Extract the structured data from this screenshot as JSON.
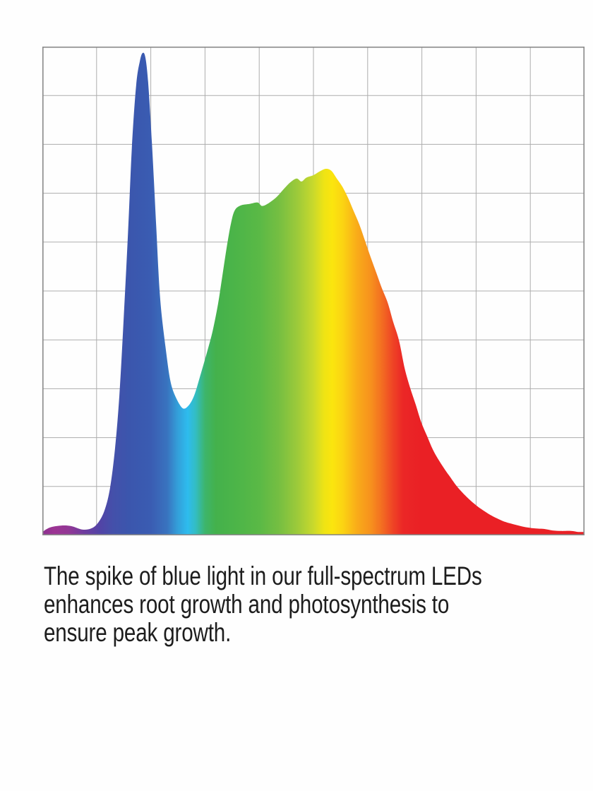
{
  "page": {
    "background": "#FEFEFE"
  },
  "chart_data": {
    "type": "area",
    "title": "",
    "subtitle": "",
    "xlabel": "",
    "ylabel": "",
    "tick_labels": "none",
    "legend": "none",
    "description": "Full-spectrum LED spectral power distribution: sharp blue spike near left, broad green-yellow-red hump, rainbow gradient fill, unlabeled 10x10 grid",
    "grid": {
      "visible": true,
      "columns": 10,
      "rows": 10,
      "line_color": "#ADADAD",
      "border_color": "#8A8A8A"
    },
    "x_unit": "percent_of_chart_width",
    "y_unit": "percent_relative_intensity",
    "xlim": [
      0,
      100
    ],
    "ylim": [
      0,
      100
    ],
    "series": [
      {
        "name": "full-spectrum-led-output",
        "points": [
          [
            0,
            0.7
          ],
          [
            1.4,
            1.6
          ],
          [
            3.4,
            2.0
          ],
          [
            5.3,
            1.9
          ],
          [
            7.3,
            1.2
          ],
          [
            9.0,
            1.4
          ],
          [
            10.3,
            2.6
          ],
          [
            11.5,
            5.2
          ],
          [
            12.5,
            9.8
          ],
          [
            13.4,
            17.7
          ],
          [
            14.2,
            28.6
          ],
          [
            15.0,
            44.4
          ],
          [
            15.8,
            61.8
          ],
          [
            16.5,
            79.1
          ],
          [
            17.3,
            92.1
          ],
          [
            18.0,
            97.1
          ],
          [
            18.5,
            98.7
          ],
          [
            19.0,
            97.8
          ],
          [
            19.5,
            92.8
          ],
          [
            20.2,
            80.5
          ],
          [
            21.0,
            63.2
          ],
          [
            21.7,
            48.8
          ],
          [
            22.7,
            38.7
          ],
          [
            23.6,
            31.7
          ],
          [
            24.6,
            28.3
          ],
          [
            25.9,
            26.0
          ],
          [
            27.0,
            26.6
          ],
          [
            28.0,
            28.6
          ],
          [
            29.0,
            32.2
          ],
          [
            30.3,
            37.2
          ],
          [
            31.4,
            41.8
          ],
          [
            32.4,
            47.3
          ],
          [
            33.2,
            53.1
          ],
          [
            34.0,
            58.9
          ],
          [
            34.8,
            63.9
          ],
          [
            35.5,
            66.5
          ],
          [
            36.6,
            67.5
          ],
          [
            38.2,
            67.8
          ],
          [
            39.7,
            68.1
          ],
          [
            40.5,
            67.4
          ],
          [
            41.5,
            67.8
          ],
          [
            43.1,
            69.1
          ],
          [
            44.4,
            70.7
          ],
          [
            45.7,
            72.2
          ],
          [
            46.9,
            73.0
          ],
          [
            47.8,
            72.4
          ],
          [
            48.7,
            73.2
          ],
          [
            50.0,
            73.7
          ],
          [
            51.2,
            74.5
          ],
          [
            52.3,
            75.0
          ],
          [
            53.3,
            74.6
          ],
          [
            54.3,
            73.0
          ],
          [
            55.3,
            71.4
          ],
          [
            56.4,
            69.0
          ],
          [
            57.4,
            66.4
          ],
          [
            58.5,
            63.5
          ],
          [
            59.5,
            60.3
          ],
          [
            60.5,
            57.1
          ],
          [
            61.6,
            53.7
          ],
          [
            62.6,
            50.6
          ],
          [
            63.7,
            47.6
          ],
          [
            64.7,
            43.7
          ],
          [
            65.8,
            39.8
          ],
          [
            66.8,
            34.3
          ],
          [
            67.8,
            30.3
          ],
          [
            68.9,
            26.6
          ],
          [
            69.9,
            23.1
          ],
          [
            71.0,
            20.2
          ],
          [
            72.0,
            17.6
          ],
          [
            73.0,
            15.6
          ],
          [
            74.1,
            13.7
          ],
          [
            75.3,
            11.8
          ],
          [
            76.4,
            10.1
          ],
          [
            77.7,
            8.5
          ],
          [
            79.0,
            7.1
          ],
          [
            80.3,
            5.9
          ],
          [
            81.6,
            4.9
          ],
          [
            82.9,
            4.0
          ],
          [
            84.2,
            3.3
          ],
          [
            85.5,
            2.7
          ],
          [
            86.8,
            2.3
          ],
          [
            88.2,
            1.9
          ],
          [
            89.5,
            1.6
          ],
          [
            91.0,
            1.4
          ],
          [
            92.6,
            1.3
          ],
          [
            94.1,
            1.0
          ],
          [
            95.7,
            0.9
          ],
          [
            97.5,
            0.9
          ],
          [
            98.8,
            0.7
          ],
          [
            100,
            0.7
          ]
        ]
      }
    ],
    "spectrum_gradient_stops": [
      [
        0,
        "#8C3190"
      ],
      [
        2.2,
        "#9C3493"
      ],
      [
        4.8,
        "#923795"
      ],
      [
        7.5,
        "#713C9E"
      ],
      [
        10.5,
        "#5343A6"
      ],
      [
        13,
        "#4450AA"
      ],
      [
        16,
        "#3B56AD"
      ],
      [
        20,
        "#3A5CB2"
      ],
      [
        23,
        "#3973BF"
      ],
      [
        25,
        "#33A0DA"
      ],
      [
        26.8,
        "#2EBCEE"
      ],
      [
        28.3,
        "#33BDC2"
      ],
      [
        30,
        "#3DB56B"
      ],
      [
        32,
        "#44B14C"
      ],
      [
        36,
        "#4DB548"
      ],
      [
        40,
        "#5AB946"
      ],
      [
        43.5,
        "#74BE42"
      ],
      [
        47,
        "#9CCA3A"
      ],
      [
        50,
        "#C9D92C"
      ],
      [
        52,
        "#EFE414"
      ],
      [
        53.5,
        "#FBE50E"
      ],
      [
        55.5,
        "#FBD313"
      ],
      [
        58,
        "#F9AC19"
      ],
      [
        60.5,
        "#F7921D"
      ],
      [
        62.5,
        "#F37021"
      ],
      [
        64.5,
        "#EF4725"
      ],
      [
        66.5,
        "#EB2726"
      ],
      [
        70,
        "#EA2025"
      ],
      [
        100,
        "#E92025"
      ]
    ]
  },
  "caption": {
    "text": "The spike of blue light in our full-spectrum LEDs enhances root growth and photosynthesis to ensure peak growth.",
    "lines": [
      "The spike of blue light in our full-spectrum LEDs",
      "enhances root growth and photosynthesis to",
      "ensure peak growth."
    ],
    "color": "#1D1D1D"
  }
}
